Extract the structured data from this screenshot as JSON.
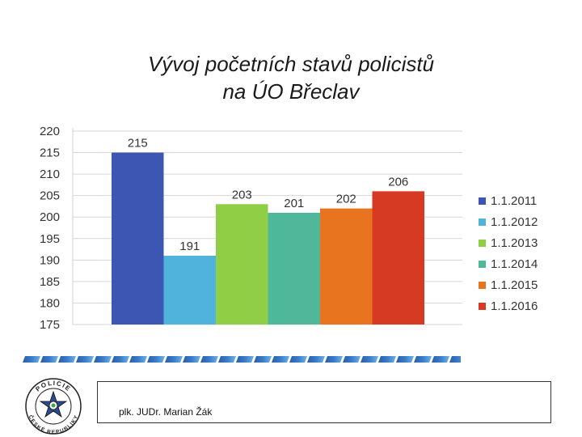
{
  "slide": {
    "title_line1": "Vývoj početních stavů policistů",
    "title_line2": "na ÚO Břeclav",
    "footer_author": "plk. JUDr. Marian Žák"
  },
  "logo": {
    "top_text": "POLICIE",
    "bottom_text": "ČESKÉ REPUBLIKY",
    "icon": "police-star-badge-icon"
  },
  "chart_data": {
    "type": "bar",
    "title": "Vývoj početních stavů policistů na ÚO Břeclav",
    "categories": [
      "1.1.2011",
      "1.1.2012",
      "1.1.2013",
      "1.1.2014",
      "1.1.2015",
      "1.1.2016"
    ],
    "values": [
      215,
      191,
      203,
      201,
      202,
      206
    ],
    "colors": [
      "#3d55b3",
      "#4fb3dc",
      "#8fce45",
      "#4fb89a",
      "#e8741f",
      "#d63a23"
    ],
    "ylim": [
      175,
      220
    ],
    "yticks": [
      175,
      180,
      185,
      190,
      195,
      200,
      205,
      210,
      215,
      220
    ],
    "grid": true,
    "legend": "right",
    "xlabel": "",
    "ylabel": ""
  }
}
